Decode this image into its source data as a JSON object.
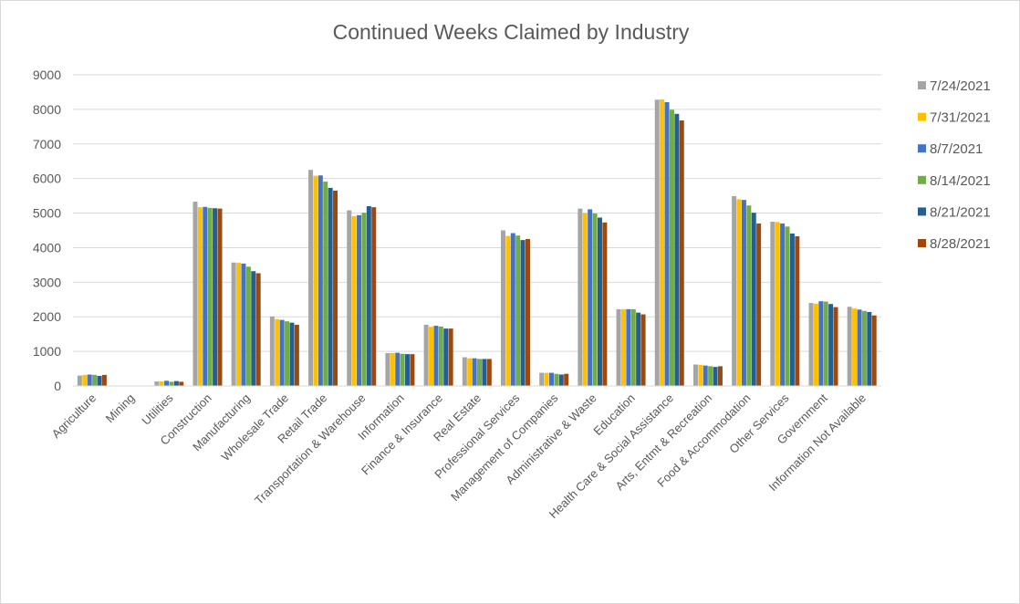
{
  "chart_data": {
    "type": "bar",
    "title": "Continued Weeks Claimed by Industry",
    "xlabel": "",
    "ylabel": "",
    "ylim": [
      0,
      9000
    ],
    "yticks": [
      0,
      1000,
      2000,
      3000,
      4000,
      5000,
      6000,
      7000,
      8000,
      9000
    ],
    "grid": true,
    "legend_position": "right",
    "categories": [
      "Agriculture",
      "Mining",
      "Utilities",
      "Construction",
      "Manufacturing",
      "Wholesale Trade",
      "Retail Trade",
      "Transportation & Warehouse",
      "Information",
      "Finance & Insurance",
      "Real Estate",
      "Professional Services",
      "Management of Companies",
      "Administrative & Waste",
      "Education",
      "Health Care & Social Assistance",
      "Arts, Entmt & Recreation",
      "Food & Accommodation",
      "Other Services",
      "Government",
      "Information Not Available"
    ],
    "series": [
      {
        "name": "7/24/2021",
        "color": "#a5a5a5",
        "values": [
          300,
          0,
          130,
          5330,
          3570,
          2010,
          6250,
          5080,
          950,
          1770,
          830,
          4500,
          380,
          5130,
          2220,
          8280,
          620,
          5490,
          4750,
          2400,
          2290
        ]
      },
      {
        "name": "7/31/2021",
        "color": "#ffc000",
        "values": [
          320,
          0,
          130,
          5170,
          3560,
          1930,
          6080,
          4910,
          950,
          1710,
          800,
          4340,
          380,
          5000,
          2220,
          8290,
          610,
          5400,
          4740,
          2380,
          2240
        ]
      },
      {
        "name": "8/7/2021",
        "color": "#4472c4",
        "values": [
          330,
          0,
          150,
          5180,
          3540,
          1910,
          6090,
          4940,
          960,
          1740,
          800,
          4420,
          380,
          5110,
          2220,
          8210,
          590,
          5380,
          4700,
          2450,
          2210
        ]
      },
      {
        "name": "8/14/2021",
        "color": "#70ad47",
        "values": [
          320,
          0,
          120,
          5150,
          3450,
          1870,
          5910,
          5010,
          930,
          1720,
          780,
          4350,
          350,
          4990,
          2220,
          7990,
          570,
          5220,
          4610,
          2440,
          2170
        ]
      },
      {
        "name": "8/21/2021",
        "color": "#255e91",
        "values": [
          290,
          0,
          140,
          5140,
          3320,
          1830,
          5730,
          5200,
          920,
          1660,
          780,
          4220,
          330,
          4870,
          2120,
          7870,
          550,
          5010,
          4410,
          2370,
          2140
        ]
      },
      {
        "name": "8/28/2021",
        "color": "#9e480e",
        "values": [
          320,
          0,
          120,
          5130,
          3260,
          1770,
          5650,
          5170,
          920,
          1660,
          780,
          4250,
          350,
          4730,
          2070,
          7680,
          570,
          4700,
          4330,
          2280,
          2040
        ]
      }
    ]
  }
}
